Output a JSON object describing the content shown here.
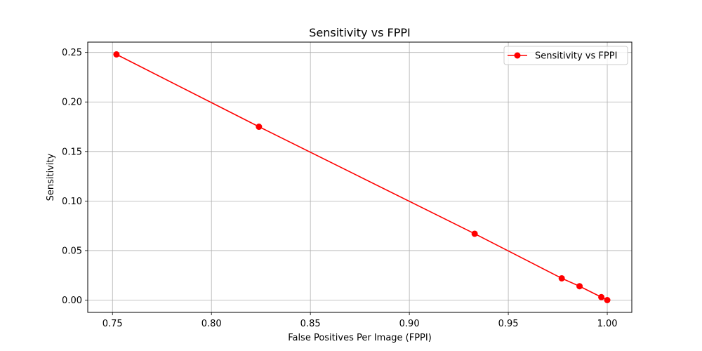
{
  "chart_data": {
    "type": "line",
    "title": "Sensitivity vs FPPI",
    "xlabel": "False Positives Per Image (FPPI)",
    "ylabel": "Sensitivity",
    "xlim": [
      0.7375,
      1.0124
    ],
    "ylim": [
      -0.0124,
      0.2604
    ],
    "xticks": [
      0.75,
      0.8,
      0.85,
      0.9,
      0.95,
      1.0
    ],
    "xtick_labels": [
      "0.75",
      "0.80",
      "0.85",
      "0.90",
      "0.95",
      "1.00"
    ],
    "yticks": [
      0.0,
      0.05,
      0.1,
      0.15,
      0.2,
      0.25
    ],
    "ytick_labels": [
      "0.00",
      "0.05",
      "0.10",
      "0.15",
      "0.20",
      "0.25"
    ],
    "grid": true,
    "legend_position": "top-right",
    "series": [
      {
        "name": "Sensitivity vs FPPI",
        "color": "#ff0000",
        "marker": "circle",
        "x": [
          0.752,
          0.824,
          0.933,
          0.977,
          0.986,
          0.997,
          1.0
        ],
        "y": [
          0.248,
          0.175,
          0.067,
          0.022,
          0.014,
          0.003,
          0.0
        ]
      }
    ]
  }
}
